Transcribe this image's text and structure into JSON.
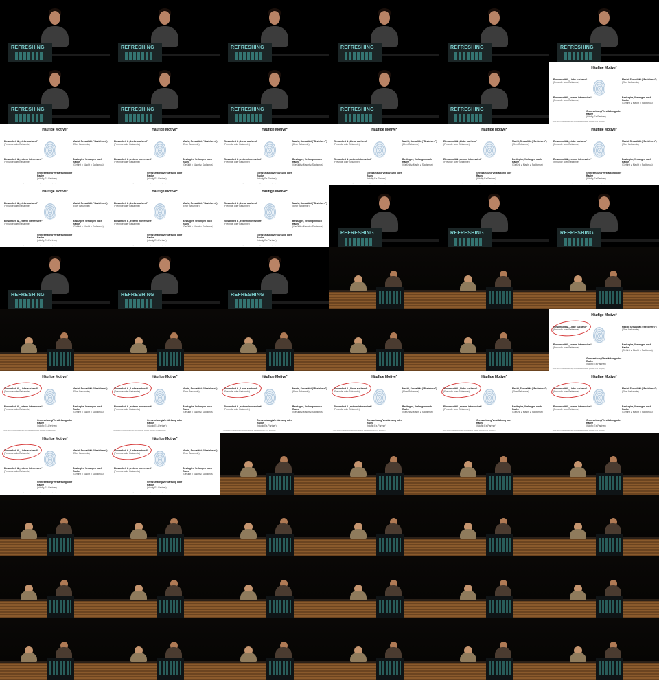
{
  "contact_sheet": {
    "columns": 6,
    "rows": 11,
    "frames": [
      "closeup",
      "closeup",
      "closeup",
      "closeup",
      "closeup",
      "closeup",
      "closeup",
      "closeup",
      "closeup",
      "closeup",
      "closeup",
      "slide",
      "slide",
      "slide",
      "slide",
      "slide",
      "slide",
      "slide",
      "slide",
      "slide",
      "slide",
      "closeup",
      "closeup",
      "closeup",
      "closeup",
      "closeup",
      "closeup",
      "stage",
      "stage",
      "stage",
      "stage",
      "stage",
      "stage",
      "stage",
      "stage",
      "slide-marked",
      "slide-marked",
      "slide-marked",
      "slide-marked",
      "slide-marked",
      "slide-marked",
      "slide-marked",
      "slide-marked",
      "slide-marked",
      "stage",
      "stage",
      "stage",
      "stage",
      "stage",
      "stage",
      "stage",
      "stage",
      "stage",
      "stage",
      "stage",
      "stage",
      "stage",
      "stage",
      "stage",
      "stage",
      "stage",
      "stage",
      "stage",
      "stage",
      "stage",
      "stage"
    ]
  },
  "podium": {
    "text": "REFRESHING"
  },
  "slide": {
    "title": "Häufige Motive*",
    "tl_main": "Einsamkeit & „Liebe suchend“",
    "tl_sub": "(Freunde oder Bekannte)",
    "tr_main": "Macht, Sexualität (“Beziehern”)",
    "tr_sub": "(Eher Bekannte)",
    "bl_main": "Einsamkeit & „extrem interessiert“",
    "bl_sub": "(Freunde oder Bekannte)",
    "br_main": "Besitzgier, Verlangen nach Rache",
    "br_sub": "(Gefühlt ≥ Macht ≥ Sadismus)",
    "bc_main": "Grenzsetzung/Verstärkung oder Rache",
    "bc_sub": "(häufig Ex-Partner)",
    "footnote": "* nach einer Zusammenfassung verschiedener Studien (gesamt 2014 Beispiele)"
  }
}
